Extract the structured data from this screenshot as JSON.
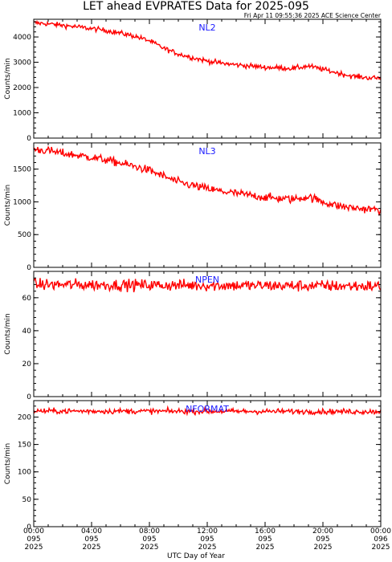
{
  "title": "LET ahead EVPRATES Data for 2025-095",
  "subtitle": "Fri Apr 11 09:55:36 2025 ACE Science Center",
  "xlabel": "UTC Day of Year",
  "x_ticks": [
    {
      "time": "00:00",
      "day": "095",
      "year": "2025"
    },
    {
      "time": "04:00",
      "day": "095",
      "year": "2025"
    },
    {
      "time": "08:00",
      "day": "095",
      "year": "2025"
    },
    {
      "time": "12:00",
      "day": "095",
      "year": "2025"
    },
    {
      "time": "16:00",
      "day": "095",
      "year": "2025"
    },
    {
      "time": "20:00",
      "day": "095",
      "year": "2025"
    },
    {
      "time": "00:00",
      "day": "096",
      "year": "2025"
    }
  ],
  "colors": {
    "line": "#ff0000",
    "panel_label": "#1a1aff",
    "axes": "#000000"
  },
  "chart_data": [
    {
      "type": "line",
      "name": "NL2",
      "ylabel": "Counts/min",
      "xlim_hours": [
        0,
        24
      ],
      "ylim": [
        0,
        4700
      ],
      "yticks": [
        0,
        1000,
        2000,
        3000,
        4000
      ],
      "grid": false,
      "x_hours": [
        0,
        1,
        2,
        3,
        4,
        5,
        6,
        7,
        8,
        9,
        10,
        11,
        12,
        13,
        14,
        15,
        16,
        17,
        18,
        19,
        20,
        21,
        22,
        23,
        24
      ],
      "values": [
        4560,
        4520,
        4460,
        4400,
        4330,
        4260,
        4150,
        4030,
        3850,
        3550,
        3330,
        3180,
        3050,
        2960,
        2900,
        2850,
        2800,
        2780,
        2760,
        2850,
        2720,
        2580,
        2450,
        2390,
        2370
      ],
      "noise": 70
    },
    {
      "type": "line",
      "name": "NL3",
      "ylabel": "Counts/min",
      "xlim_hours": [
        0,
        24
      ],
      "ylim": [
        0,
        1900
      ],
      "yticks": [
        0,
        500,
        1000,
        1500
      ],
      "grid": false,
      "x_hours": [
        0,
        1,
        2,
        3,
        4,
        5,
        6,
        7,
        8,
        9,
        10,
        11,
        12,
        13,
        14,
        15,
        16,
        17,
        18,
        19,
        20,
        21,
        22,
        23,
        24
      ],
      "values": [
        1800,
        1780,
        1740,
        1710,
        1680,
        1640,
        1590,
        1540,
        1480,
        1390,
        1300,
        1250,
        1200,
        1160,
        1130,
        1100,
        1070,
        1050,
        1040,
        1080,
        1000,
        940,
        910,
        890,
        880
      ],
      "noise": 45
    },
    {
      "type": "line",
      "name": "NPEN",
      "ylabel": "Counts/min",
      "xlim_hours": [
        0,
        24
      ],
      "ylim": [
        0,
        76
      ],
      "yticks": [
        0,
        20,
        40,
        60
      ],
      "grid": false,
      "x_hours": [
        0,
        24
      ],
      "values": [
        68,
        67
      ],
      "noise": 2.5
    },
    {
      "type": "line",
      "name": "NFORMAT",
      "ylabel": "Counts/min",
      "xlim_hours": [
        0,
        24
      ],
      "ylim": [
        0,
        230
      ],
      "yticks": [
        0,
        50,
        100,
        150,
        200
      ],
      "grid": false,
      "x_hours": [
        0,
        24
      ],
      "values": [
        211,
        210
      ],
      "noise": 3.5
    }
  ]
}
